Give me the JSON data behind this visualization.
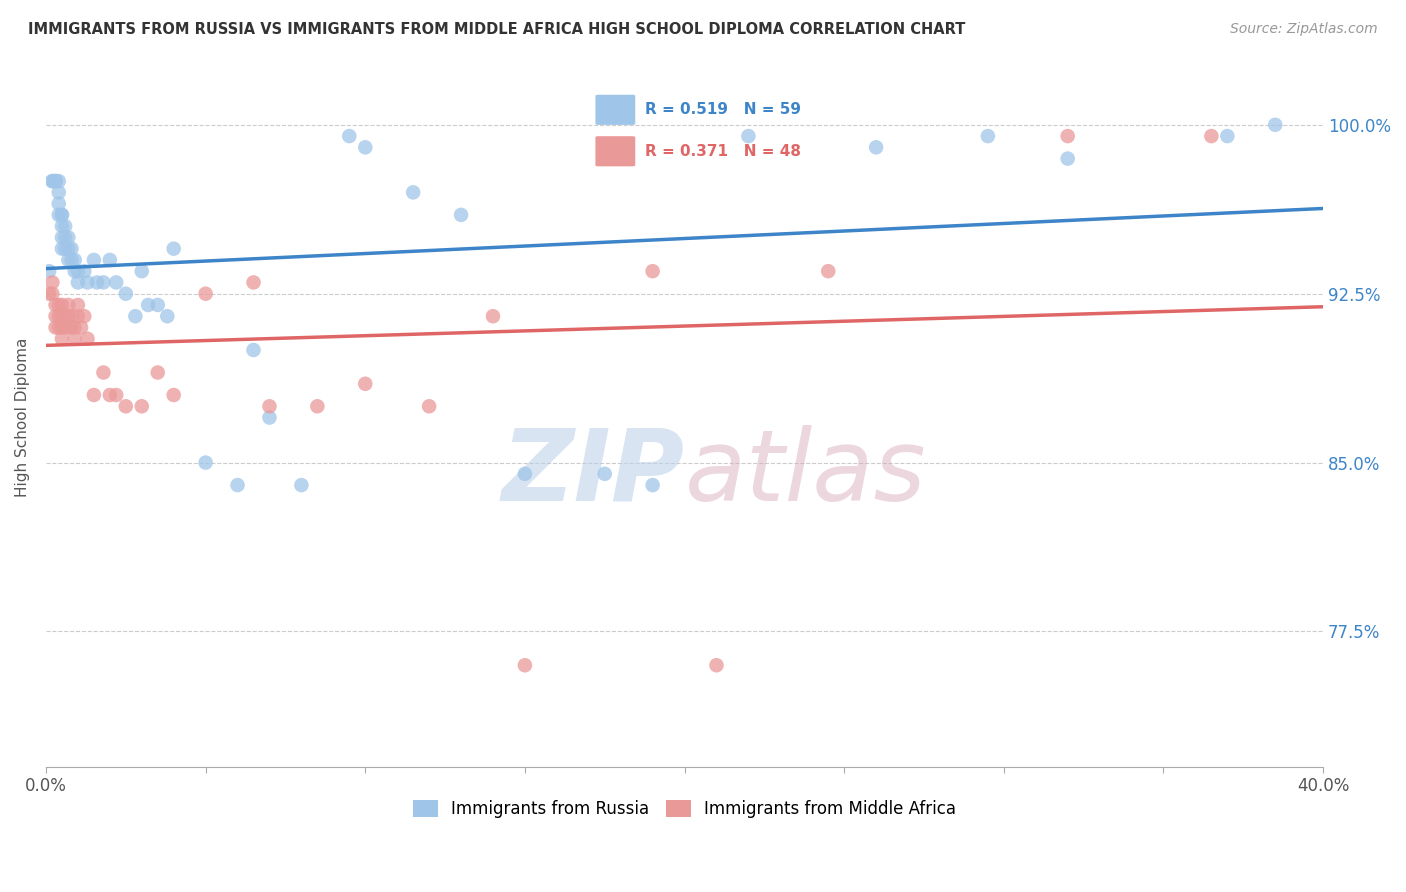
{
  "title": "IMMIGRANTS FROM RUSSIA VS IMMIGRANTS FROM MIDDLE AFRICA HIGH SCHOOL DIPLOMA CORRELATION CHART",
  "source": "Source: ZipAtlas.com",
  "ylabel": "High School Diploma",
  "ytick_labels": [
    "100.0%",
    "92.5%",
    "85.0%",
    "77.5%"
  ],
  "ytick_values": [
    1.0,
    0.925,
    0.85,
    0.775
  ],
  "legend_label1": "Immigrants from Russia",
  "legend_label2": "Immigrants from Middle Africa",
  "R1": 0.519,
  "N1": 59,
  "R2": 0.371,
  "N2": 48,
  "color_russia": "#9fc5e8",
  "color_africa": "#ea9999",
  "color_russia_line": "#3d85c8",
  "color_africa_line": "#e06666",
  "background_color": "#ffffff",
  "watermark_color": "#cfe2f3",
  "xlim": [
    0.0,
    0.4
  ],
  "ylim": [
    0.715,
    1.025
  ],
  "russia_x": [
    0.001,
    0.002,
    0.002,
    0.003,
    0.003,
    0.003,
    0.004,
    0.004,
    0.004,
    0.004,
    0.005,
    0.005,
    0.005,
    0.005,
    0.005,
    0.006,
    0.006,
    0.006,
    0.007,
    0.007,
    0.007,
    0.008,
    0.008,
    0.009,
    0.009,
    0.01,
    0.01,
    0.012,
    0.013,
    0.015,
    0.016,
    0.018,
    0.02,
    0.022,
    0.025,
    0.028,
    0.03,
    0.032,
    0.035,
    0.038,
    0.04,
    0.05,
    0.06,
    0.065,
    0.07,
    0.08,
    0.095,
    0.1,
    0.115,
    0.13,
    0.15,
    0.175,
    0.19,
    0.22,
    0.26,
    0.295,
    0.32,
    0.37,
    0.385
  ],
  "russia_y": [
    0.935,
    0.975,
    0.975,
    0.975,
    0.975,
    0.975,
    0.975,
    0.97,
    0.965,
    0.96,
    0.96,
    0.96,
    0.955,
    0.95,
    0.945,
    0.955,
    0.95,
    0.945,
    0.95,
    0.945,
    0.94,
    0.945,
    0.94,
    0.94,
    0.935,
    0.935,
    0.93,
    0.935,
    0.93,
    0.94,
    0.93,
    0.93,
    0.94,
    0.93,
    0.925,
    0.915,
    0.935,
    0.92,
    0.92,
    0.915,
    0.945,
    0.85,
    0.84,
    0.9,
    0.87,
    0.84,
    0.995,
    0.99,
    0.97,
    0.96,
    0.845,
    0.845,
    0.84,
    0.995,
    0.99,
    0.995,
    0.985,
    0.995,
    1.0
  ],
  "africa_x": [
    0.001,
    0.002,
    0.002,
    0.003,
    0.003,
    0.003,
    0.004,
    0.004,
    0.004,
    0.005,
    0.005,
    0.005,
    0.005,
    0.006,
    0.006,
    0.007,
    0.007,
    0.007,
    0.008,
    0.008,
    0.009,
    0.009,
    0.01,
    0.01,
    0.011,
    0.012,
    0.013,
    0.015,
    0.018,
    0.02,
    0.022,
    0.025,
    0.03,
    0.035,
    0.04,
    0.05,
    0.065,
    0.07,
    0.085,
    0.1,
    0.12,
    0.14,
    0.15,
    0.19,
    0.21,
    0.245,
    0.32,
    0.365
  ],
  "africa_y": [
    0.925,
    0.93,
    0.925,
    0.92,
    0.915,
    0.91,
    0.92,
    0.915,
    0.91,
    0.92,
    0.915,
    0.91,
    0.905,
    0.915,
    0.91,
    0.92,
    0.915,
    0.91,
    0.915,
    0.91,
    0.91,
    0.905,
    0.92,
    0.915,
    0.91,
    0.915,
    0.905,
    0.88,
    0.89,
    0.88,
    0.88,
    0.875,
    0.875,
    0.89,
    0.88,
    0.925,
    0.93,
    0.875,
    0.875,
    0.885,
    0.875,
    0.915,
    0.76,
    0.935,
    0.76,
    0.935,
    0.995,
    0.995
  ]
}
